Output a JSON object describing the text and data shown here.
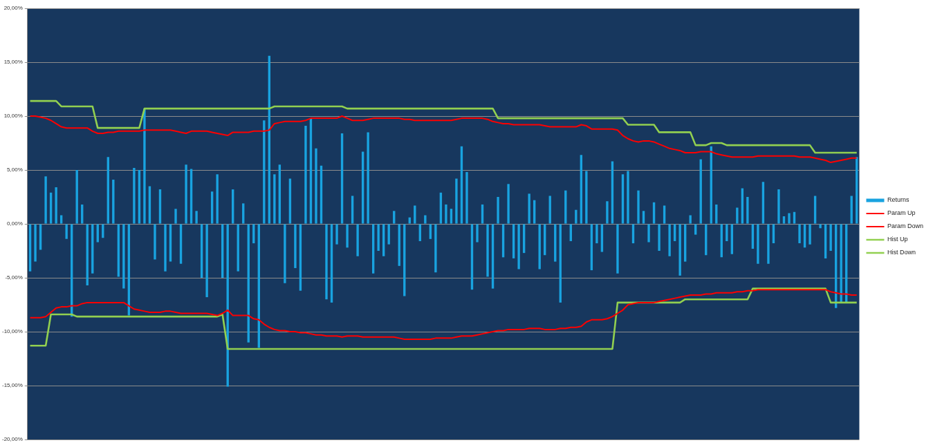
{
  "chart_data": {
    "type": "bar",
    "categories": [
      null,
      null,
      null,
      null,
      null,
      null,
      null,
      null,
      null,
      null,
      null,
      null,
      null,
      null,
      null,
      null,
      null,
      null,
      null,
      null,
      null,
      null,
      null,
      null,
      null,
      null,
      null,
      null,
      null,
      null,
      null,
      null,
      null,
      null,
      null,
      null,
      null,
      null,
      null,
      null,
      null,
      null,
      null,
      null,
      null,
      null,
      null,
      null,
      null,
      null,
      null,
      null,
      null,
      null,
      null,
      null,
      null,
      null,
      null,
      null,
      null,
      null,
      null,
      null,
      null,
      null,
      null,
      null,
      null,
      null,
      null,
      null,
      null,
      null,
      null,
      null,
      null,
      null,
      null,
      null,
      null,
      null,
      null,
      null,
      null,
      null,
      null,
      null,
      null,
      null,
      null,
      null,
      null,
      null,
      null,
      null,
      null,
      null,
      null,
      null,
      null,
      null,
      null,
      null,
      null,
      null,
      null,
      null,
      null,
      null,
      null,
      null,
      null,
      null,
      null,
      null,
      null,
      null,
      null,
      null,
      null,
      null,
      null,
      null,
      null,
      null,
      null,
      null,
      null,
      null,
      null,
      null,
      null,
      null,
      null,
      null,
      null,
      null,
      null,
      null,
      null,
      null,
      null,
      null,
      null,
      null,
      null,
      null,
      null,
      null,
      null,
      null,
      null,
      null,
      null,
      null,
      null,
      null,
      null,
      null
    ],
    "series": [
      {
        "name": "Returns",
        "color": "#19a3e0",
        "values": [
          -4.4,
          -3.5,
          -2.4,
          4.4,
          2.9,
          3.4,
          0.8,
          -1.4,
          -8.6,
          5.0,
          1.8,
          -5.7,
          -4.6,
          -1.7,
          -1.3,
          6.2,
          4.1,
          -4.9,
          -6.0,
          -8.5,
          5.2,
          5.0,
          10.7,
          3.5,
          -3.3,
          3.2,
          -4.4,
          -3.5,
          1.4,
          -3.7,
          5.5,
          5.1,
          1.2,
          -5.0,
          -6.8,
          3.0,
          4.6,
          -5.0,
          -15.1,
          3.2,
          -4.4,
          1.9,
          -11.0,
          -1.8,
          -11.5,
          9.6,
          15.6,
          4.6,
          5.5,
          -5.5,
          4.2,
          -4.1,
          -6.2,
          9.1,
          9.8,
          7.0,
          5.4,
          -7.0,
          -7.3,
          -1.9,
          8.4,
          -2.2,
          2.6,
          -3.0,
          6.7,
          8.5,
          -4.6,
          -2.5,
          -3.0,
          -1.9,
          1.2,
          -3.9,
          -6.7,
          0.6,
          1.7,
          -1.6,
          0.8,
          -1.4,
          -4.5,
          2.9,
          1.8,
          1.4,
          4.2,
          7.2,
          4.8,
          -6.1,
          -1.7,
          1.8,
          -4.9,
          -6.0,
          2.5,
          -3.1,
          3.7,
          -3.2,
          -4.2,
          -2.7,
          2.8,
          2.2,
          -4.2,
          -2.9,
          2.6,
          -3.5,
          -7.3,
          3.1,
          -1.6,
          1.3,
          6.4,
          4.9,
          -4.3,
          -1.8,
          -2.6,
          2.1,
          5.8,
          -4.6,
          4.6,
          4.9,
          -1.8,
          3.1,
          1.2,
          -1.7,
          2.0,
          -2.5,
          1.7,
          -3.0,
          -1.6,
          -4.8,
          -3.5,
          0.8,
          -1.0,
          6.0,
          -2.9,
          7.2,
          1.8,
          -3.1,
          -1.6,
          -2.8,
          1.5,
          3.3,
          2.5,
          -2.3,
          -3.7,
          3.9,
          -3.7,
          -1.8,
          3.2,
          0.7,
          1.0,
          1.1,
          -1.8,
          -2.2,
          -1.9,
          2.6,
          -0.4,
          -3.2,
          -2.5,
          -7.8,
          -7.3,
          -7.3,
          2.6,
          6.2
        ]
      },
      {
        "name": "Param Up",
        "type": "line",
        "color": "#ff0000",
        "values": [
          10.0,
          10.0,
          9.9,
          9.8,
          9.6,
          9.3,
          9.0,
          8.9,
          8.9,
          8.9,
          8.9,
          8.9,
          8.6,
          8.4,
          8.4,
          8.5,
          8.5,
          8.6,
          8.6,
          8.6,
          8.6,
          8.6,
          8.7,
          8.7,
          8.7,
          8.7,
          8.7,
          8.7,
          8.6,
          8.5,
          8.4,
          8.6,
          8.6,
          8.6,
          8.6,
          8.5,
          8.4,
          8.3,
          8.2,
          8.5,
          8.5,
          8.5,
          8.5,
          8.6,
          8.6,
          8.6,
          8.7,
          9.3,
          9.4,
          9.5,
          9.5,
          9.5,
          9.5,
          9.6,
          9.8,
          9.8,
          9.8,
          9.8,
          9.8,
          9.8,
          10.0,
          9.8,
          9.6,
          9.6,
          9.6,
          9.7,
          9.8,
          9.8,
          9.8,
          9.8,
          9.8,
          9.8,
          9.7,
          9.7,
          9.6,
          9.6,
          9.6,
          9.6,
          9.6,
          9.6,
          9.6,
          9.6,
          9.7,
          9.8,
          9.8,
          9.8,
          9.8,
          9.8,
          9.7,
          9.5,
          9.4,
          9.3,
          9.3,
          9.2,
          9.2,
          9.2,
          9.2,
          9.2,
          9.2,
          9.1,
          9.0,
          9.0,
          9.0,
          9.0,
          9.0,
          9.0,
          9.2,
          9.1,
          8.8,
          8.8,
          8.8,
          8.8,
          8.8,
          8.7,
          8.2,
          7.9,
          7.7,
          7.6,
          7.7,
          7.7,
          7.6,
          7.4,
          7.2,
          7.0,
          6.9,
          6.8,
          6.6,
          6.6,
          6.6,
          6.7,
          6.7,
          6.7,
          6.5,
          6.4,
          6.3,
          6.2,
          6.2,
          6.2,
          6.2,
          6.2,
          6.3,
          6.3,
          6.3,
          6.3,
          6.3,
          6.3,
          6.3,
          6.3,
          6.2,
          6.2,
          6.2,
          6.1,
          6.0,
          5.9,
          5.7,
          5.8,
          5.9,
          6.0,
          6.1,
          6.1
        ]
      },
      {
        "name": "Param Down",
        "type": "line",
        "color": "#ff0000",
        "values": [
          -8.7,
          -8.7,
          -8.7,
          -8.6,
          -8.2,
          -7.8,
          -7.7,
          -7.7,
          -7.6,
          -7.6,
          -7.4,
          -7.3,
          -7.3,
          -7.3,
          -7.3,
          -7.3,
          -7.3,
          -7.3,
          -7.3,
          -7.6,
          -7.9,
          -8.0,
          -8.1,
          -8.2,
          -8.2,
          -8.2,
          -8.1,
          -8.1,
          -8.2,
          -8.3,
          -8.3,
          -8.3,
          -8.3,
          -8.3,
          -8.3,
          -8.4,
          -8.5,
          -8.3,
          -8.0,
          -8.5,
          -8.5,
          -8.5,
          -8.5,
          -8.8,
          -8.9,
          -9.3,
          -9.6,
          -9.8,
          -9.9,
          -9.9,
          -10.0,
          -10.0,
          -10.1,
          -10.1,
          -10.2,
          -10.3,
          -10.3,
          -10.4,
          -10.4,
          -10.4,
          -10.5,
          -10.4,
          -10.4,
          -10.4,
          -10.5,
          -10.5,
          -10.5,
          -10.5,
          -10.5,
          -10.5,
          -10.5,
          -10.6,
          -10.7,
          -10.7,
          -10.7,
          -10.7,
          -10.7,
          -10.7,
          -10.6,
          -10.6,
          -10.6,
          -10.6,
          -10.5,
          -10.4,
          -10.4,
          -10.4,
          -10.3,
          -10.2,
          -10.1,
          -10.0,
          -9.9,
          -9.9,
          -9.8,
          -9.8,
          -9.8,
          -9.8,
          -9.7,
          -9.7,
          -9.7,
          -9.8,
          -9.8,
          -9.8,
          -9.7,
          -9.7,
          -9.6,
          -9.6,
          -9.5,
          -9.1,
          -8.9,
          -8.9,
          -8.9,
          -8.8,
          -8.6,
          -8.3,
          -8.0,
          -7.5,
          -7.4,
          -7.3,
          -7.3,
          -7.3,
          -7.3,
          -7.2,
          -7.1,
          -7.0,
          -6.9,
          -6.8,
          -6.7,
          -6.6,
          -6.6,
          -6.6,
          -6.5,
          -6.5,
          -6.4,
          -6.4,
          -6.4,
          -6.4,
          -6.3,
          -6.3,
          -6.2,
          -6.2,
          -6.1,
          -6.1,
          -6.1,
          -6.1,
          -6.1,
          -6.1,
          -6.1,
          -6.1,
          -6.1,
          -6.1,
          -6.1,
          -6.1,
          -6.1,
          -6.1,
          -6.3,
          -6.4,
          -6.5,
          -6.5,
          -6.6,
          -6.6
        ]
      },
      {
        "name": "Hist Up",
        "type": "line",
        "color": "#92d050",
        "values": [
          11.4,
          11.4,
          11.4,
          11.4,
          11.4,
          11.4,
          10.9,
          10.9,
          10.9,
          10.9,
          10.9,
          10.9,
          10.9,
          8.9,
          8.9,
          8.9,
          8.9,
          8.9,
          8.9,
          8.9,
          8.9,
          8.9,
          10.7,
          10.7,
          10.7,
          10.7,
          10.7,
          10.7,
          10.7,
          10.7,
          10.7,
          10.7,
          10.7,
          10.7,
          10.7,
          10.7,
          10.7,
          10.7,
          10.7,
          10.7,
          10.7,
          10.7,
          10.7,
          10.7,
          10.7,
          10.7,
          10.7,
          10.9,
          10.9,
          10.9,
          10.9,
          10.9,
          10.9,
          10.9,
          10.9,
          10.9,
          10.9,
          10.9,
          10.9,
          10.9,
          10.9,
          10.7,
          10.7,
          10.7,
          10.7,
          10.7,
          10.7,
          10.7,
          10.7,
          10.7,
          10.7,
          10.7,
          10.7,
          10.7,
          10.7,
          10.7,
          10.7,
          10.7,
          10.7,
          10.7,
          10.7,
          10.7,
          10.7,
          10.7,
          10.7,
          10.7,
          10.7,
          10.7,
          10.7,
          10.7,
          9.8,
          9.8,
          9.8,
          9.8,
          9.8,
          9.8,
          9.8,
          9.8,
          9.8,
          9.8,
          9.8,
          9.8,
          9.8,
          9.8,
          9.8,
          9.8,
          9.8,
          9.8,
          9.8,
          9.8,
          9.8,
          9.8,
          9.8,
          9.8,
          9.8,
          9.2,
          9.2,
          9.2,
          9.2,
          9.2,
          9.2,
          8.5,
          8.5,
          8.5,
          8.5,
          8.5,
          8.5,
          8.5,
          7.3,
          7.3,
          7.3,
          7.5,
          7.5,
          7.5,
          7.3,
          7.3,
          7.3,
          7.3,
          7.3,
          7.3,
          7.3,
          7.3,
          7.3,
          7.3,
          7.3,
          7.3,
          7.3,
          7.3,
          7.3,
          7.3,
          7.3,
          6.6,
          6.6,
          6.6,
          6.6,
          6.6,
          6.6,
          6.6,
          6.6,
          6.6
        ]
      },
      {
        "name": "Hist Down",
        "type": "line",
        "color": "#92d050",
        "values": [
          -11.3,
          -11.3,
          -11.3,
          -11.3,
          -8.4,
          -8.4,
          -8.4,
          -8.4,
          -8.4,
          -8.6,
          -8.6,
          -8.6,
          -8.6,
          -8.6,
          -8.6,
          -8.6,
          -8.6,
          -8.6,
          -8.6,
          -8.6,
          -8.6,
          -8.6,
          -8.6,
          -8.6,
          -8.6,
          -8.6,
          -8.6,
          -8.6,
          -8.6,
          -8.6,
          -8.6,
          -8.6,
          -8.6,
          -8.6,
          -8.6,
          -8.6,
          -8.6,
          -8.4,
          -11.6,
          -11.6,
          -11.6,
          -11.6,
          -11.6,
          -11.6,
          -11.6,
          -11.6,
          -11.6,
          -11.6,
          -11.6,
          -11.6,
          -11.6,
          -11.6,
          -11.6,
          -11.6,
          -11.6,
          -11.6,
          -11.6,
          -11.6,
          -11.6,
          -11.6,
          -11.6,
          -11.6,
          -11.6,
          -11.6,
          -11.6,
          -11.6,
          -11.6,
          -11.6,
          -11.6,
          -11.6,
          -11.6,
          -11.6,
          -11.6,
          -11.6,
          -11.6,
          -11.6,
          -11.6,
          -11.6,
          -11.6,
          -11.6,
          -11.6,
          -11.6,
          -11.6,
          -11.6,
          -11.6,
          -11.6,
          -11.6,
          -11.6,
          -11.6,
          -11.6,
          -11.6,
          -11.6,
          -11.6,
          -11.6,
          -11.6,
          -11.6,
          -11.6,
          -11.6,
          -11.6,
          -11.6,
          -11.6,
          -11.6,
          -11.6,
          -11.6,
          -11.6,
          -11.6,
          -11.6,
          -11.6,
          -11.6,
          -11.6,
          -11.6,
          -11.6,
          -11.6,
          -7.3,
          -7.3,
          -7.3,
          -7.3,
          -7.3,
          -7.3,
          -7.3,
          -7.3,
          -7.3,
          -7.3,
          -7.3,
          -7.3,
          -7.3,
          -7.0,
          -7.0,
          -7.0,
          -7.0,
          -7.0,
          -7.0,
          -7.0,
          -7.0,
          -7.0,
          -7.0,
          -7.0,
          -7.0,
          -7.0,
          -6.0,
          -6.0,
          -6.0,
          -6.0,
          -6.0,
          -6.0,
          -6.0,
          -6.0,
          -6.0,
          -6.0,
          -6.0,
          -6.0,
          -6.0,
          -6.0,
          -6.0,
          -7.3,
          -7.3,
          -7.3,
          -7.3,
          -7.3,
          -7.3
        ]
      }
    ],
    "ylim": [
      -20,
      20
    ],
    "yticks": [
      {
        "value": -20,
        "label": "-20,00%"
      },
      {
        "value": -15,
        "label": "-15,00%"
      },
      {
        "value": -10,
        "label": "-10,00%"
      },
      {
        "value": -5,
        "label": "-5,00%"
      },
      {
        "value": 0,
        "label": "0,00%"
      },
      {
        "value": 5,
        "label": "5,00%"
      },
      {
        "value": 10,
        "label": "10,00%"
      },
      {
        "value": 15,
        "label": "15,00%"
      },
      {
        "value": 20,
        "label": "20,00%"
      }
    ],
    "grid": "y",
    "legend": "right",
    "marker": "none",
    "line_style": "solid"
  }
}
